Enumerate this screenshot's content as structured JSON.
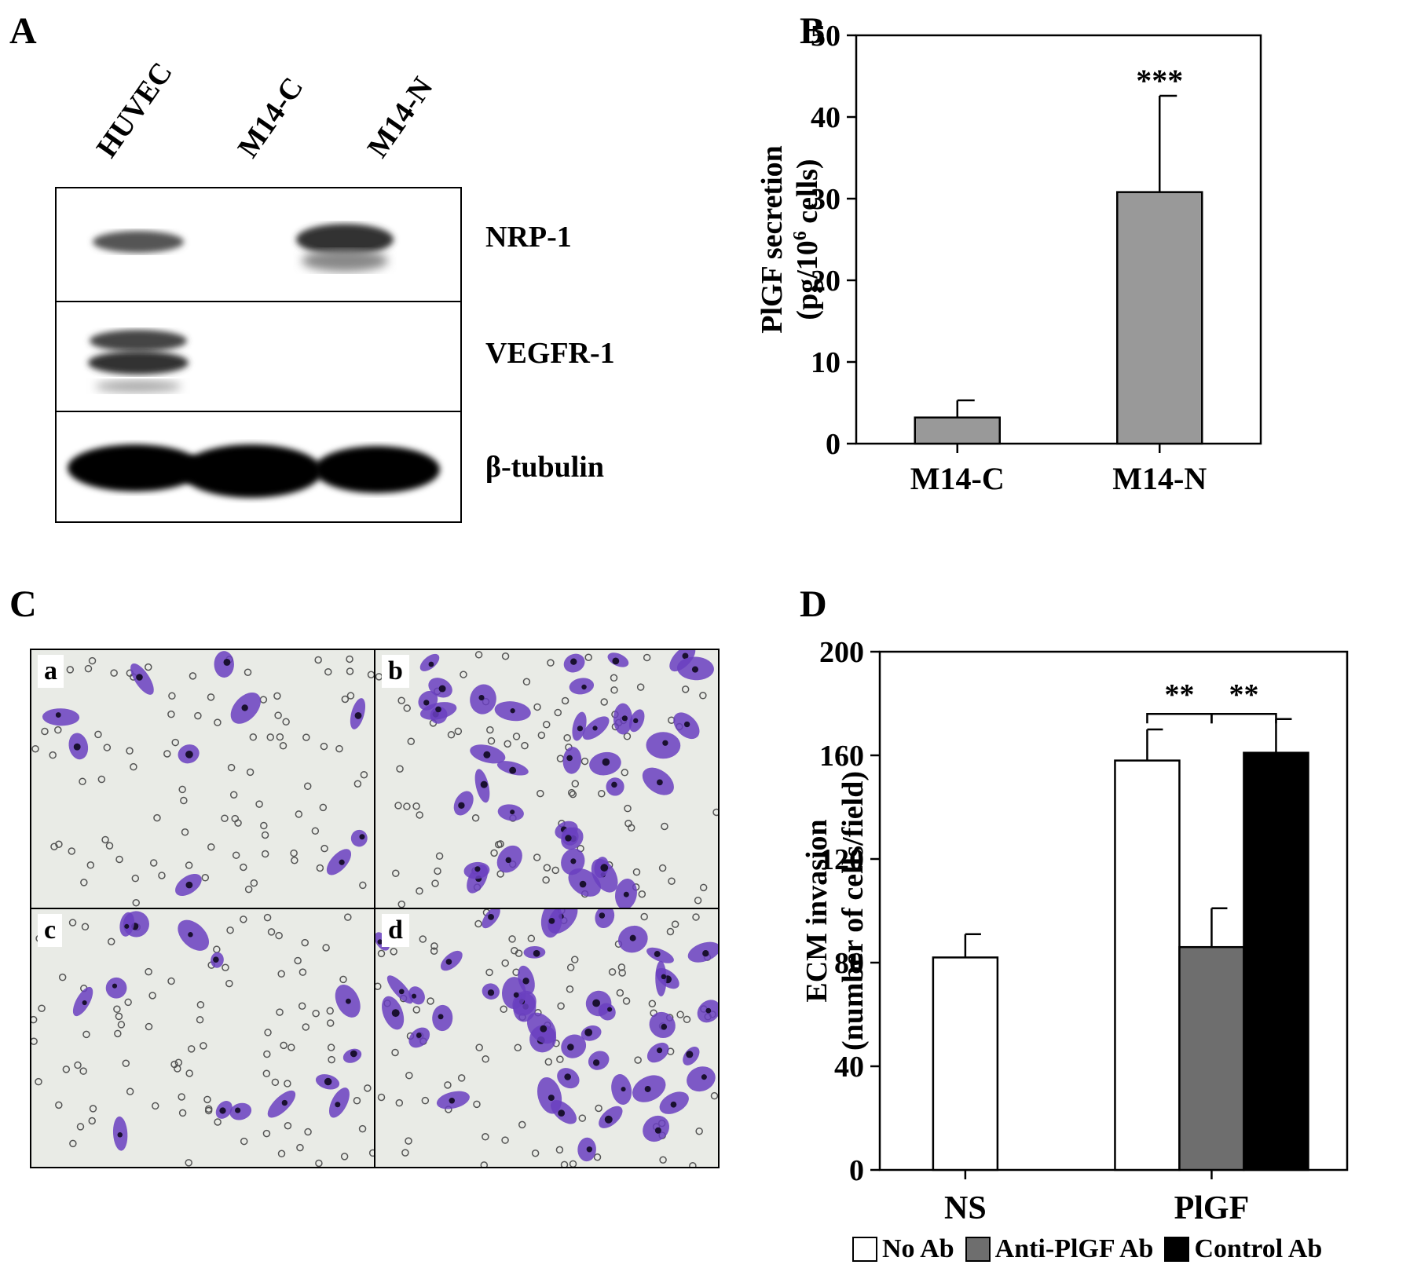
{
  "panels": {
    "a": "A",
    "b": "B",
    "c": "C",
    "d": "D"
  },
  "western_blot": {
    "lanes": [
      "HUVEC",
      "M14-C",
      "M14-N"
    ],
    "rows": [
      "NRP-1",
      "VEGFR-1",
      "β-tubulin"
    ]
  },
  "micrographs": {
    "labels": [
      "a",
      "b",
      "c",
      "d"
    ],
    "stain_color": "#6a3fbf"
  },
  "chart_data": [
    {
      "type": "bar",
      "panel": "B",
      "categories": [
        "M14-C",
        "M14-N"
      ],
      "values": [
        3.2,
        30.8
      ],
      "errors": [
        2.1,
        11.8
      ],
      "significance": [
        "",
        "***"
      ],
      "ylabel_line1": "PlGF secretion",
      "ylabel_line2_pre": "(pg/10",
      "ylabel_line2_sup": "6",
      "ylabel_line2_post": " cells)",
      "ylim": [
        0,
        50
      ],
      "yticks": [
        0,
        10,
        20,
        30,
        40,
        50
      ],
      "bar_color": "#999999"
    },
    {
      "type": "bar",
      "panel": "D",
      "groups": [
        "NS",
        "PlGF"
      ],
      "series": [
        {
          "name": "No Ab",
          "color": "#ffffff",
          "values": [
            82,
            158
          ],
          "errors": [
            9,
            12
          ]
        },
        {
          "name": "Anti-PlGF Ab",
          "color": "#6e6e6e",
          "values": [
            null,
            86
          ],
          "errors": [
            null,
            15
          ]
        },
        {
          "name": "Control Ab",
          "color": "#000000",
          "values": [
            null,
            161
          ],
          "errors": [
            null,
            13
          ]
        }
      ],
      "ylabel_line1": "ECM invasion",
      "ylabel_line2": "(number of cells/field)",
      "ylim": [
        0,
        200
      ],
      "yticks": [
        0,
        40,
        80,
        120,
        160,
        200
      ],
      "significance": [
        "**",
        "**"
      ]
    }
  ]
}
